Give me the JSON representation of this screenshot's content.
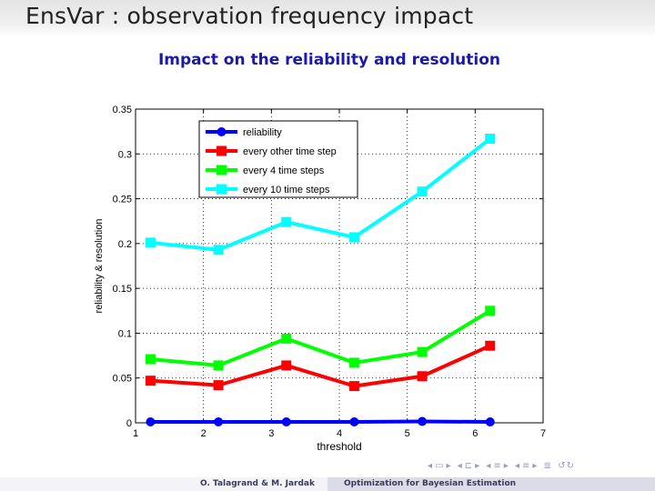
{
  "slide": {
    "title": "EnsVar : observation frequency impact"
  },
  "footer": {
    "authors": "O. Talagrand & M. Jardak",
    "talk_title": "Optimization for Bayesian Estimation"
  },
  "colors": {
    "title_blue": "#1a1aa8",
    "reliability": "#0000ff",
    "every_other": "#ff0000",
    "every_4": "#00ff00",
    "every_10": "#00ffff"
  },
  "chart_data": {
    "type": "line",
    "title": "Impact on the reliability and resolution",
    "xlabel": "threshold",
    "ylabel": "reliability & resolution",
    "xlim": [
      1,
      7
    ],
    "ylim": [
      0,
      0.35
    ],
    "xticks": [
      "1",
      "2",
      "3",
      "4",
      "5",
      "6",
      "7"
    ],
    "yticks": [
      "0",
      "0.05",
      "0.1",
      "0.15",
      "0.2",
      "0.25",
      "0.3",
      "0.35"
    ],
    "grid": true,
    "legend_position": "top-left",
    "x": [
      1.22,
      2.22,
      3.22,
      4.22,
      5.22,
      6.22
    ],
    "series": [
      {
        "name": "reliability",
        "marker": "circle",
        "color": "#0000ff",
        "values": [
          0.001,
          0.001,
          0.001,
          0.001,
          0.0015,
          0.001
        ]
      },
      {
        "name": "every other time step",
        "marker": "square",
        "color": "#ff0000",
        "values": [
          0.047,
          0.042,
          0.064,
          0.041,
          0.052,
          0.086
        ]
      },
      {
        "name": "every 4 time steps",
        "marker": "square",
        "color": "#00ff00",
        "values": [
          0.071,
          0.064,
          0.094,
          0.067,
          0.079,
          0.125
        ]
      },
      {
        "name": "every 10 time steps",
        "marker": "square",
        "color": "#00ffff",
        "values": [
          0.201,
          0.193,
          0.224,
          0.207,
          0.258,
          0.317
        ]
      }
    ]
  }
}
